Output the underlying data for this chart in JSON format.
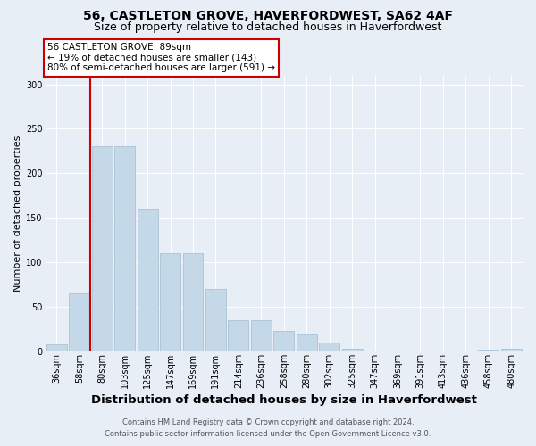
{
  "title1": "56, CASTLETON GROVE, HAVERFORDWEST, SA62 4AF",
  "title2": "Size of property relative to detached houses in Haverfordwest",
  "xlabel": "Distribution of detached houses by size in Haverfordwest",
  "ylabel": "Number of detached properties",
  "footer1": "Contains HM Land Registry data © Crown copyright and database right 2024.",
  "footer2": "Contains public sector information licensed under the Open Government Licence v3.0.",
  "categories": [
    "36sqm",
    "58sqm",
    "80sqm",
    "103sqm",
    "125sqm",
    "147sqm",
    "169sqm",
    "191sqm",
    "214sqm",
    "236sqm",
    "258sqm",
    "280sqm",
    "302sqm",
    "325sqm",
    "347sqm",
    "369sqm",
    "391sqm",
    "413sqm",
    "436sqm",
    "458sqm",
    "480sqm"
  ],
  "values": [
    8,
    65,
    230,
    230,
    160,
    110,
    110,
    70,
    35,
    35,
    23,
    20,
    10,
    3,
    1,
    1,
    1,
    1,
    1,
    2,
    3
  ],
  "bar_color": "#c5d8e8",
  "bar_edge_color": "#a0bcd0",
  "vline_x": 1.5,
  "vline_color": "#cc0000",
  "annotation_line1": "56 CASTLETON GROVE: 89sqm",
  "annotation_line2": "← 19% of detached houses are smaller (143)",
  "annotation_line3": "80% of semi-detached houses are larger (591) →",
  "annotation_box_facecolor": "#ffffff",
  "annotation_box_edgecolor": "#cc0000",
  "bg_color": "#e8eef5",
  "grid_color": "#ffffff",
  "ylim": [
    0,
    310
  ],
  "yticks": [
    0,
    50,
    100,
    150,
    200,
    250,
    300
  ],
  "title1_fontsize": 10,
  "title2_fontsize": 9,
  "xlabel_fontsize": 9.5,
  "ylabel_fontsize": 8,
  "tick_fontsize": 7,
  "annotation_fontsize": 7.5,
  "footer_fontsize": 6
}
